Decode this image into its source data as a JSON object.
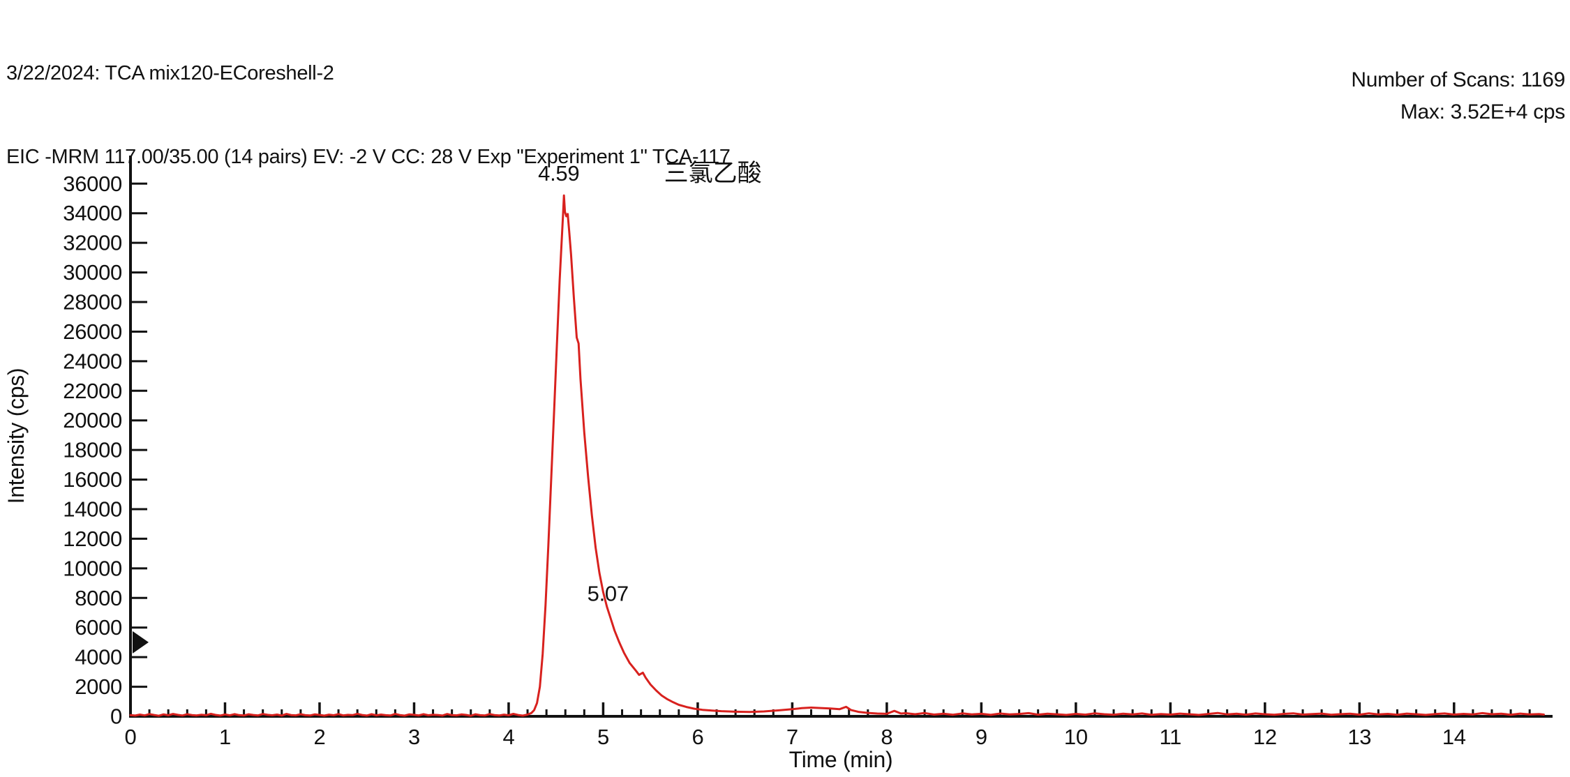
{
  "header": {
    "line1": "3/22/2024: TCA mix120-ECoreshell-2",
    "line2": "EIC -MRM 117.00/35.00 (14 pairs) EV: -2 V CC: 28 V Exp \"Experiment 1\" TCA-117"
  },
  "info": {
    "scans": "Number of Scans: 1169",
    "max": "Max: 3.52E+4 cps"
  },
  "colors": {
    "trace": "#d8211e",
    "axis": "#111111",
    "background": "#ffffff"
  },
  "chart_data": {
    "type": "line",
    "title": "",
    "xlabel": "Time (min)",
    "ylabel": "Intensity (cps)",
    "xlim": [
      0,
      15.02
    ],
    "ylim": [
      0,
      37900
    ],
    "grid": false,
    "legend": false,
    "x_ticks": [
      0,
      1,
      2,
      3,
      4,
      5,
      6,
      7,
      8,
      9,
      10,
      11,
      12,
      13,
      14
    ],
    "x_minor_tick_interval": 0.2,
    "y_ticks": [
      0,
      2000,
      4000,
      6000,
      8000,
      10000,
      12000,
      14000,
      16000,
      18000,
      20000,
      22000,
      24000,
      26000,
      28000,
      30000,
      32000,
      34000,
      36000
    ],
    "y_axis_marker": {
      "shape": "right-triangle",
      "y": 5000,
      "color": "#111111"
    },
    "annotations": [
      {
        "text": "4.59",
        "x": 4.53,
        "y": 36700,
        "type": "peak-rt"
      },
      {
        "text": "三氯乙酸",
        "x": 6.16,
        "y": 36700,
        "type": "compound-name"
      },
      {
        "text": "5.07",
        "x": 5.05,
        "y": 8300,
        "type": "peak-rt"
      }
    ],
    "series": [
      {
        "name": "EIC -MRM 117.00/35.00 TCA-117",
        "color": "#d8211e",
        "peak_retention_min": 4.59,
        "peak_max_cps": 35200,
        "points": [
          [
            0,
            80
          ],
          [
            0.05,
            50
          ],
          [
            0.1,
            120
          ],
          [
            0.15,
            60
          ],
          [
            0.2,
            150
          ],
          [
            0.25,
            90
          ],
          [
            0.3,
            40
          ],
          [
            0.35,
            130
          ],
          [
            0.4,
            70
          ],
          [
            0.45,
            160
          ],
          [
            0.5,
            100
          ],
          [
            0.55,
            55
          ],
          [
            0.6,
            140
          ],
          [
            0.65,
            85
          ],
          [
            0.7,
            60
          ],
          [
            0.75,
            110
          ],
          [
            0.8,
            75
          ],
          [
            0.85,
            170
          ],
          [
            0.9,
            95
          ],
          [
            0.95,
            50
          ],
          [
            1,
            125
          ],
          [
            1.05,
            65
          ],
          [
            1.1,
            145
          ],
          [
            1.15,
            80
          ],
          [
            1.2,
            55
          ],
          [
            1.25,
            135
          ],
          [
            1.3,
            90
          ],
          [
            1.35,
            60
          ],
          [
            1.4,
            155
          ],
          [
            1.45,
            100
          ],
          [
            1.5,
            70
          ],
          [
            1.55,
            120
          ],
          [
            1.6,
            50
          ],
          [
            1.65,
            160
          ],
          [
            1.7,
            85
          ],
          [
            1.75,
            65
          ],
          [
            1.8,
            140
          ],
          [
            1.85,
            75
          ],
          [
            1.9,
            55
          ],
          [
            1.95,
            130
          ],
          [
            2,
            95
          ],
          [
            2.05,
            45
          ],
          [
            2.1,
            115
          ],
          [
            2.15,
            70
          ],
          [
            2.2,
            150
          ],
          [
            2.25,
            60
          ],
          [
            2.3,
            100
          ],
          [
            2.35,
            80
          ],
          [
            2.4,
            170
          ],
          [
            2.45,
            90
          ],
          [
            2.5,
            50
          ],
          [
            2.55,
            140
          ],
          [
            2.6,
            65
          ],
          [
            2.65,
            120
          ],
          [
            2.7,
            75
          ],
          [
            2.75,
            55
          ],
          [
            2.8,
            160
          ],
          [
            2.85,
            85
          ],
          [
            2.9,
            45
          ],
          [
            2.95,
            130
          ],
          [
            3,
            100
          ],
          [
            3.05,
            60
          ],
          [
            3.1,
            145
          ],
          [
            3.15,
            70
          ],
          [
            3.2,
            110
          ],
          [
            3.25,
            90
          ],
          [
            3.3,
            50
          ],
          [
            3.35,
            155
          ],
          [
            3.4,
            80
          ],
          [
            3.45,
            65
          ],
          [
            3.5,
            125
          ],
          [
            3.55,
            95
          ],
          [
            3.6,
            40
          ],
          [
            3.65,
            135
          ],
          [
            3.7,
            75
          ],
          [
            3.75,
            60
          ],
          [
            3.8,
            150
          ],
          [
            3.85,
            85
          ],
          [
            3.9,
            55
          ],
          [
            3.95,
            115
          ],
          [
            4,
            70
          ],
          [
            4.05,
            165
          ],
          [
            4.1,
            90
          ],
          [
            4.15,
            45
          ],
          [
            4.2,
            120
          ],
          [
            4.24,
            220
          ],
          [
            4.27,
            420
          ],
          [
            4.3,
            900
          ],
          [
            4.33,
            2000
          ],
          [
            4.36,
            4200
          ],
          [
            4.39,
            7500
          ],
          [
            4.42,
            11500
          ],
          [
            4.45,
            16000
          ],
          [
            4.48,
            20500
          ],
          [
            4.51,
            25000
          ],
          [
            4.54,
            29500
          ],
          [
            4.56,
            32000
          ],
          [
            4.575,
            33800
          ],
          [
            4.585,
            35200
          ],
          [
            4.595,
            34100
          ],
          [
            4.61,
            33800
          ],
          [
            4.625,
            33950
          ],
          [
            4.64,
            32800
          ],
          [
            4.66,
            31200
          ],
          [
            4.69,
            28300
          ],
          [
            4.72,
            25600
          ],
          [
            4.74,
            25200
          ],
          [
            4.76,
            22800
          ],
          [
            4.8,
            19200
          ],
          [
            4.84,
            16200
          ],
          [
            4.88,
            13600
          ],
          [
            4.92,
            11400
          ],
          [
            4.96,
            9700
          ],
          [
            5,
            8400
          ],
          [
            5.04,
            7400
          ],
          [
            5.07,
            6800
          ],
          [
            5.12,
            5800
          ],
          [
            5.17,
            5000
          ],
          [
            5.22,
            4300
          ],
          [
            5.28,
            3600
          ],
          [
            5.35,
            3050
          ],
          [
            5.38,
            2800
          ],
          [
            5.42,
            2950
          ],
          [
            5.45,
            2600
          ],
          [
            5.5,
            2150
          ],
          [
            5.56,
            1750
          ],
          [
            5.62,
            1400
          ],
          [
            5.68,
            1150
          ],
          [
            5.74,
            950
          ],
          [
            5.8,
            780
          ],
          [
            5.88,
            630
          ],
          [
            5.96,
            520
          ],
          [
            6.05,
            440
          ],
          [
            6.15,
            390
          ],
          [
            6.25,
            350
          ],
          [
            6.4,
            310
          ],
          [
            6.55,
            290
          ],
          [
            6.7,
            330
          ],
          [
            6.85,
            400
          ],
          [
            7,
            480
          ],
          [
            7.1,
            550
          ],
          [
            7.2,
            590
          ],
          [
            7.3,
            560
          ],
          [
            7.4,
            530
          ],
          [
            7.5,
            480
          ],
          [
            7.57,
            640
          ],
          [
            7.62,
            430
          ],
          [
            7.7,
            300
          ],
          [
            7.8,
            230
          ],
          [
            7.9,
            190
          ],
          [
            8,
            170
          ],
          [
            8.08,
            370
          ],
          [
            8.15,
            190
          ],
          [
            8.2,
            210
          ],
          [
            8.3,
            140
          ],
          [
            8.4,
            220
          ],
          [
            8.5,
            120
          ],
          [
            8.6,
            180
          ],
          [
            8.7,
            110
          ],
          [
            8.8,
            200
          ],
          [
            8.9,
            130
          ],
          [
            9,
            170
          ],
          [
            9.1,
            100
          ],
          [
            9.2,
            190
          ],
          [
            9.3,
            125
          ],
          [
            9.4,
            160
          ],
          [
            9.5,
            215
          ],
          [
            9.6,
            115
          ],
          [
            9.7,
            180
          ],
          [
            9.8,
            135
          ],
          [
            9.9,
            95
          ],
          [
            10,
            165
          ],
          [
            10.1,
            115
          ],
          [
            10.2,
            205
          ],
          [
            10.3,
            140
          ],
          [
            10.4,
            105
          ],
          [
            10.5,
            175
          ],
          [
            10.6,
            125
          ],
          [
            10.7,
            195
          ],
          [
            10.8,
            105
          ],
          [
            10.9,
            150
          ],
          [
            11,
            120
          ],
          [
            11.1,
            185
          ],
          [
            11.2,
            140
          ],
          [
            11.3,
            95
          ],
          [
            11.4,
            160
          ],
          [
            11.5,
            225
          ],
          [
            11.6,
            130
          ],
          [
            11.7,
            175
          ],
          [
            11.8,
            115
          ],
          [
            11.9,
            195
          ],
          [
            12,
            140
          ],
          [
            12.1,
            105
          ],
          [
            12.2,
            165
          ],
          [
            12.3,
            205
          ],
          [
            12.4,
            120
          ],
          [
            12.5,
            150
          ],
          [
            12.6,
            185
          ],
          [
            12.7,
            110
          ],
          [
            12.8,
            145
          ],
          [
            12.9,
            175
          ],
          [
            13,
            115
          ],
          [
            13.1,
            205
          ],
          [
            13.2,
            130
          ],
          [
            13.3,
            165
          ],
          [
            13.4,
            105
          ],
          [
            13.5,
            185
          ],
          [
            13.6,
            140
          ],
          [
            13.7,
            95
          ],
          [
            13.8,
            155
          ],
          [
            13.9,
            195
          ],
          [
            14,
            120
          ],
          [
            14.1,
            165
          ],
          [
            14.2,
            130
          ],
          [
            14.3,
            215
          ],
          [
            14.4,
            140
          ],
          [
            14.5,
            175
          ],
          [
            14.6,
            110
          ],
          [
            14.7,
            185
          ],
          [
            14.8,
            130
          ],
          [
            14.9,
            155
          ],
          [
            14.95,
            120
          ]
        ]
      }
    ]
  }
}
